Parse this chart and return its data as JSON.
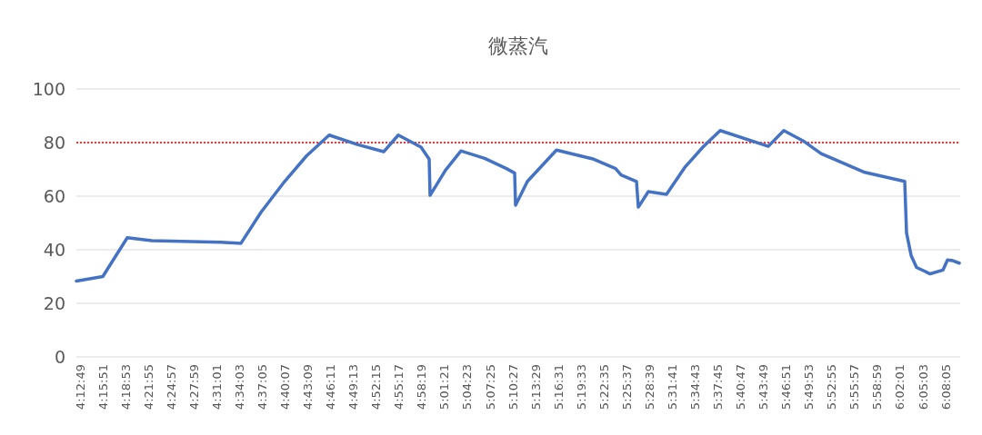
{
  "chart_data": {
    "type": "line",
    "title": "微蒸汽",
    "x": [
      4.2055,
      4.2641,
      4.3185,
      4.373,
      4.5264,
      4.5708,
      4.6152,
      4.6677,
      4.7161,
      4.7665,
      4.8291,
      4.8876,
      4.9199,
      4.9704,
      4.9885,
      4.9905,
      5.0248,
      5.0591,
      5.1116,
      5.16,
      5.1782,
      5.1802,
      5.2065,
      5.271,
      5.3538,
      5.4022,
      5.4143,
      5.4486,
      5.4527,
      5.4749,
      5.5152,
      5.5556,
      5.5959,
      5.6343,
      5.7412,
      5.7755,
      5.8179,
      5.8583,
      5.9531,
      6.0439,
      6.048,
      6.0581,
      6.0702,
      6.1004,
      6.1287,
      6.1388,
      6.1509,
      6.165
    ],
    "series": [
      {
        "color": "#4472c4",
        "values": [
          28.3,
          30,
          44.5,
          43.4,
          42.8,
          42.4,
          54,
          65.5,
          75,
          82.8,
          79.3,
          76.6,
          82.8,
          78.3,
          73.8,
          60.3,
          69.7,
          76.9,
          74.1,
          70.3,
          68.6,
          56.6,
          65.5,
          77.2,
          73.8,
          70.3,
          67.9,
          65.5,
          55.9,
          61.7,
          60.7,
          70.7,
          78.3,
          84.5,
          78.6,
          84.5,
          80.7,
          75.9,
          69,
          65.5,
          46.2,
          37.9,
          33.4,
          31,
          32.4,
          36.2,
          35.9,
          35
        ]
      }
    ],
    "xlim": [
      4.2055,
      6.167
    ],
    "xticks": [
      {
        "value": 4.2136,
        "label": "4:12:49"
      },
      {
        "value": 4.2642,
        "label": "4:15:51"
      },
      {
        "value": 4.3147,
        "label": "4:18:53"
      },
      {
        "value": 4.3653,
        "label": "4:21:55"
      },
      {
        "value": 4.4158,
        "label": "4:24:57"
      },
      {
        "value": 4.4664,
        "label": "4:27:59"
      },
      {
        "value": 4.5169,
        "label": "4:31:01"
      },
      {
        "value": 4.5675,
        "label": "4:34:03"
      },
      {
        "value": 4.6181,
        "label": "4:37:05"
      },
      {
        "value": 4.6686,
        "label": "4:40:07"
      },
      {
        "value": 4.7192,
        "label": "4:43:09"
      },
      {
        "value": 4.7697,
        "label": "4:46:11"
      },
      {
        "value": 4.8203,
        "label": "4:49:13"
      },
      {
        "value": 4.8708,
        "label": "4:52:15"
      },
      {
        "value": 4.9214,
        "label": "4:55:17"
      },
      {
        "value": 4.9719,
        "label": "4:58:19"
      },
      {
        "value": 5.0225,
        "label": "5:01:21"
      },
      {
        "value": 5.0731,
        "label": "5:04:23"
      },
      {
        "value": 5.1236,
        "label": "5:07:25"
      },
      {
        "value": 5.1742,
        "label": "5:10:27"
      },
      {
        "value": 5.2247,
        "label": "5:13:29"
      },
      {
        "value": 5.2753,
        "label": "5:16:31"
      },
      {
        "value": 5.3258,
        "label": "5:19:33"
      },
      {
        "value": 5.3764,
        "label": "5:22:35"
      },
      {
        "value": 5.4269,
        "label": "5:25:37"
      },
      {
        "value": 5.4775,
        "label": "5:28:39"
      },
      {
        "value": 5.5281,
        "label": "5:31:41"
      },
      {
        "value": 5.5786,
        "label": "5:34:43"
      },
      {
        "value": 5.6292,
        "label": "5:37:45"
      },
      {
        "value": 5.6797,
        "label": "5:40:47"
      },
      {
        "value": 5.7303,
        "label": "5:43:49"
      },
      {
        "value": 5.7808,
        "label": "5:46:51"
      },
      {
        "value": 5.8314,
        "label": "5:49:53"
      },
      {
        "value": 5.8819,
        "label": "5:52:55"
      },
      {
        "value": 5.9325,
        "label": "5:55:57"
      },
      {
        "value": 5.9831,
        "label": "5:58:59"
      },
      {
        "value": 6.0336,
        "label": "6:02:01"
      },
      {
        "value": 6.0842,
        "label": "6:05:03"
      },
      {
        "value": 6.1347,
        "label": "6:08:05"
      }
    ],
    "ylim": [
      0,
      100
    ],
    "yticks": [
      0,
      20,
      40,
      60,
      80,
      100
    ],
    "grid": "y",
    "marker": "none",
    "line_style": "solid",
    "ref_lines": [
      {
        "axis": "y",
        "value": 80,
        "color": "#e00000",
        "line_style": "dotted"
      }
    ]
  }
}
